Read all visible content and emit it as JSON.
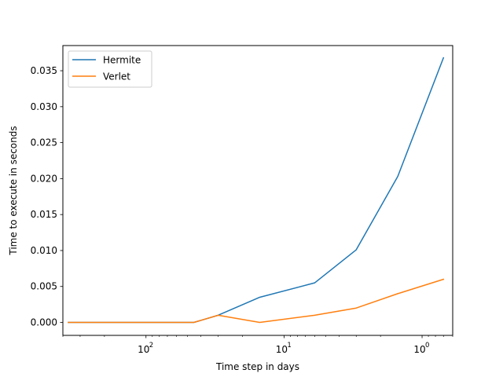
{
  "chart_data": {
    "type": "line",
    "xscale": "log",
    "x_axis_inverted": true,
    "xlabel": "Time step in days",
    "ylabel": "Time to execute in seconds",
    "xlim": [
      0.6,
      400
    ],
    "ylim": [
      -0.0018,
      0.0385
    ],
    "x_ticks": [
      {
        "value": 100,
        "label": "10"
      },
      {
        "value": 10,
        "label": "10"
      },
      {
        "value": 1,
        "label": "10"
      }
    ],
    "x_tick_exponents": [
      "2",
      "1",
      "0"
    ],
    "y_ticks": [
      {
        "value": 0.0,
        "label": "0.000"
      },
      {
        "value": 0.005,
        "label": "0.005"
      },
      {
        "value": 0.01,
        "label": "0.010"
      },
      {
        "value": 0.015,
        "label": "0.015"
      },
      {
        "value": 0.02,
        "label": "0.020"
      },
      {
        "value": 0.025,
        "label": "0.025"
      },
      {
        "value": 0.03,
        "label": "0.030"
      },
      {
        "value": 0.035,
        "label": "0.035"
      }
    ],
    "x": [
      365,
      200,
      100,
      45,
      30,
      15,
      6,
      3,
      1.5,
      0.7
    ],
    "series": [
      {
        "name": "Hermite",
        "color": "#1f77b4",
        "values": [
          0.0,
          0.0,
          0.0,
          0.0,
          0.001,
          0.0035,
          0.0055,
          0.0101,
          0.0203,
          0.0368
        ]
      },
      {
        "name": "Verlet",
        "color": "#ff7f0e",
        "values": [
          0.0,
          0.0,
          0.0,
          0.0,
          0.001,
          0.0,
          0.001,
          0.002,
          0.004,
          0.006
        ]
      }
    ],
    "legend": {
      "placement": "upper-left",
      "entries": [
        "Hermite",
        "Verlet"
      ]
    },
    "grid": false
  }
}
